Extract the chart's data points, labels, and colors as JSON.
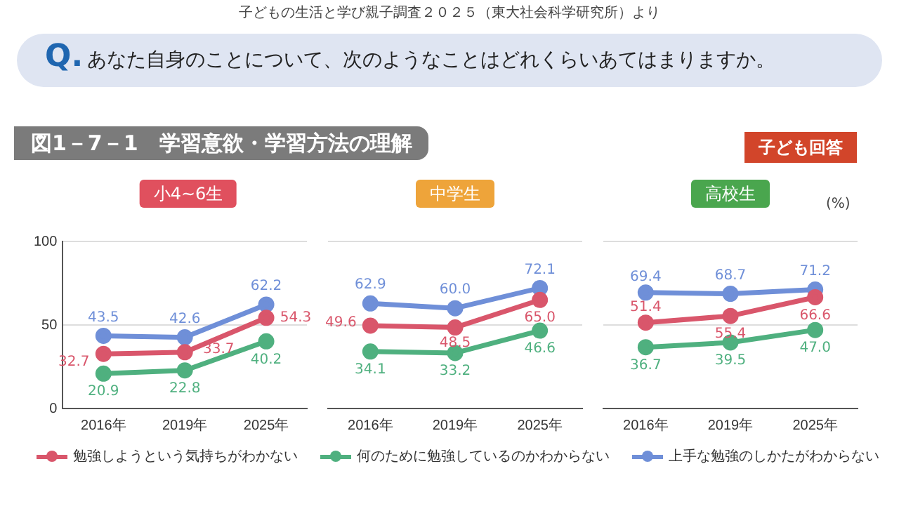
{
  "chart_data": [
    {
      "type": "line",
      "title": "小4~6生",
      "categories": [
        "2016年",
        "2019年",
        "2025年"
      ],
      "series": [
        {
          "color": "#d9566b",
          "values": [
            32.7,
            33.7,
            54.3
          ],
          "value_labels": [
            "32.7",
            "33.7",
            "54.3"
          ]
        },
        {
          "color": "#4fb07f",
          "values": [
            20.9,
            22.8,
            40.2
          ],
          "value_labels": [
            "20.9",
            "22.8",
            "40.2"
          ]
        },
        {
          "color": "#6f8fd8",
          "values": [
            43.5,
            42.6,
            62.2
          ],
          "value_labels": [
            "43.5",
            "42.6",
            "62.2"
          ]
        }
      ],
      "ylim": [
        0,
        100
      ],
      "yticks": [
        0,
        50,
        100
      ],
      "grid": "y",
      "marker": "circle",
      "annotations": [
        "子どもの生活と学び親子調査２０２５（東大社会科学研究所）より",
        "Q.",
        "あなた自身のことについて、次のようなことはどれくらいあてはまりますか。",
        "図1－7－1　学習意欲・学習方法の理解",
        "子ども回答"
      ]
    },
    {
      "type": "line",
      "title": "中学生",
      "categories": [
        "2016年",
        "2019年",
        "2025年"
      ],
      "series": [
        {
          "color": "#d9566b",
          "values": [
            49.6,
            48.5,
            65.0
          ],
          "value_labels": [
            "49.6",
            "48.5",
            "65.0"
          ]
        },
        {
          "color": "#4fb07f",
          "values": [
            34.1,
            33.2,
            46.6
          ],
          "value_labels": [
            "34.1",
            "33.2",
            "46.6"
          ]
        },
        {
          "color": "#6f8fd8",
          "values": [
            62.9,
            60.0,
            72.1
          ],
          "value_labels": [
            "62.9",
            "60.0",
            "72.1"
          ]
        }
      ],
      "ylim": [
        0,
        100
      ],
      "yticks": [
        0,
        50,
        100
      ],
      "grid": "y",
      "marker": "circle",
      "tick_labels": "x"
    },
    {
      "type": "line",
      "title": "高校生",
      "categories": [
        "2016年",
        "2019年",
        "2025年"
      ],
      "series": [
        {
          "name": "勉強しようという気持ちがわかない",
          "color": "#d9566b",
          "values": [
            51.4,
            55.4,
            66.6
          ],
          "value_labels": [
            "51.4",
            "55.4",
            "66.6"
          ]
        },
        {
          "name": "何のために勉強しているのかわからない",
          "color": "#4fb07f",
          "values": [
            36.7,
            39.5,
            47.0
          ],
          "value_labels": [
            "36.7",
            "39.5",
            "47.0"
          ]
        },
        {
          "name": "上手な勉強のしかたがわからない",
          "color": "#6f8fd8",
          "values": [
            69.4,
            68.7,
            71.2
          ],
          "value_labels": [
            "69.4",
            "68.7",
            "71.2"
          ]
        }
      ],
      "ylim": [
        0,
        100
      ],
      "yticks": [
        0,
        50,
        100
      ],
      "grid": "y",
      "marker": "circle",
      "tick_labels": "x",
      "legend": "bottom",
      "annotations": [
        "(%)"
      ]
    }
  ]
}
